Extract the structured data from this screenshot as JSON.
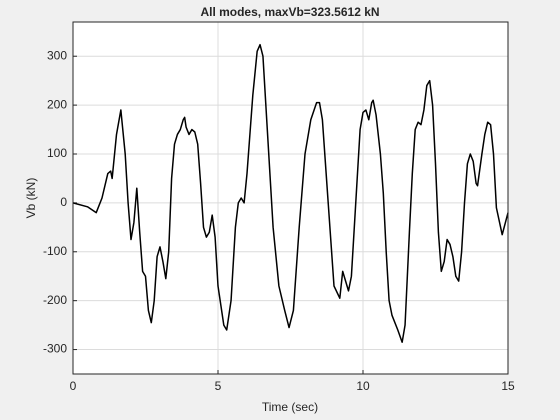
{
  "chart_data": {
    "type": "line",
    "title": "All modes, maxVb=323.5612 kN",
    "xlabel": "Time (sec)",
    "ylabel": "Vb (kN)",
    "x": [
      0,
      0.5,
      0.8,
      1.0,
      1.2,
      1.3,
      1.35,
      1.5,
      1.65,
      1.8,
      1.9,
      2.0,
      2.1,
      2.2,
      2.3,
      2.4,
      2.5,
      2.6,
      2.7,
      2.8,
      2.9,
      3.0,
      3.1,
      3.2,
      3.3,
      3.4,
      3.5,
      3.6,
      3.7,
      3.8,
      3.85,
      3.9,
      4.0,
      4.1,
      4.2,
      4.3,
      4.4,
      4.5,
      4.6,
      4.7,
      4.8,
      4.9,
      5.0,
      5.2,
      5.3,
      5.45,
      5.6,
      5.7,
      5.8,
      5.9,
      6.0,
      6.2,
      6.35,
      6.45,
      6.55,
      6.7,
      6.9,
      7.1,
      7.3,
      7.45,
      7.6,
      7.8,
      8.0,
      8.2,
      8.4,
      8.5,
      8.6,
      8.8,
      9.0,
      9.2,
      9.3,
      9.4,
      9.5,
      9.6,
      9.8,
      9.9,
      10.0,
      10.1,
      10.2,
      10.3,
      10.35,
      10.45,
      10.6,
      10.7,
      10.8,
      10.9,
      11.0,
      11.2,
      11.35,
      11.45,
      11.6,
      11.7,
      11.8,
      11.9,
      12.0,
      12.1,
      12.2,
      12.3,
      12.4,
      12.5,
      12.6,
      12.7,
      12.8,
      12.9,
      13.0,
      13.1,
      13.2,
      13.3,
      13.4,
      13.5,
      13.6,
      13.7,
      13.8,
      13.9,
      13.95,
      14.1,
      14.2,
      14.3,
      14.4,
      14.5,
      14.6,
      14.8,
      15.0
    ],
    "series": [
      {
        "name": "Vb",
        "color": "#000000",
        "values": [
          0,
          -8,
          -20,
          10,
          60,
          65,
          50,
          140,
          190,
          100,
          0,
          -75,
          -40,
          30,
          -60,
          -140,
          -150,
          -220,
          -245,
          -200,
          -110,
          -90,
          -120,
          -155,
          -100,
          50,
          120,
          140,
          150,
          170,
          175,
          155,
          140,
          150,
          145,
          120,
          40,
          -50,
          -70,
          -60,
          -25,
          -70,
          -170,
          -250,
          -260,
          -200,
          -50,
          0,
          10,
          0,
          60,
          220,
          310,
          323.56,
          300,
          150,
          -50,
          -170,
          -220,
          -255,
          -220,
          -50,
          100,
          170,
          205,
          205,
          170,
          0,
          -170,
          -195,
          -140,
          -160,
          -180,
          -150,
          50,
          150,
          185,
          190,
          170,
          205,
          210,
          180,
          100,
          20,
          -100,
          -200,
          -230,
          -260,
          -285,
          -250,
          -60,
          60,
          150,
          165,
          160,
          190,
          240,
          250,
          200,
          80,
          -60,
          -140,
          -120,
          -75,
          -85,
          -110,
          -150,
          -160,
          -100,
          0,
          80,
          100,
          85,
          40,
          35,
          100,
          140,
          165,
          160,
          100,
          -10,
          -65,
          -20
        ]
      }
    ],
    "xlim": [
      0,
      15
    ],
    "xticks": [
      0,
      5,
      10,
      15
    ],
    "ylim": [
      -350,
      370
    ],
    "yticks": [
      -300,
      -200,
      -100,
      0,
      100,
      200,
      300
    ],
    "grid": true
  }
}
